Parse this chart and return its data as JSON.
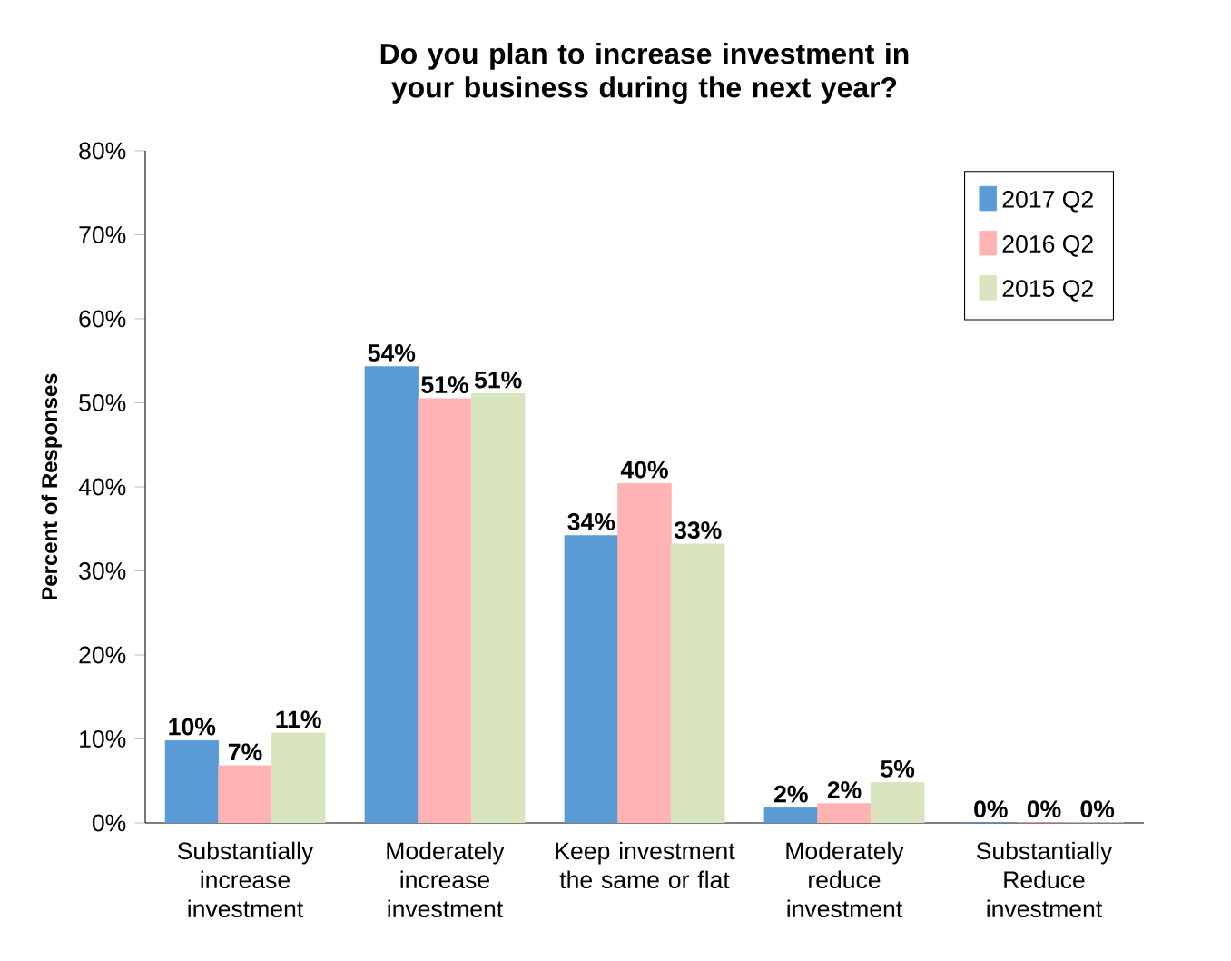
{
  "chart_data": {
    "type": "bar",
    "title": "Do you plan to increase investment in your business during the next year?",
    "ylabel": "Percent of Responses",
    "categories": [
      "Substantially increase investment",
      "Moderately increase investment",
      "Keep investment the same or flat",
      "Moderately reduce investment",
      "Substantially Reduce investment"
    ],
    "series": [
      {
        "name": "2017 Q2",
        "color": "#5b9bd5",
        "values": [
          9.8,
          54.3,
          34.2,
          1.8,
          0
        ],
        "value_labels": [
          "10%",
          "54%",
          "34%",
          "2%",
          "0%"
        ]
      },
      {
        "name": "2016 Q2",
        "color": "#ffb3b3",
        "values": [
          6.8,
          50.5,
          40.4,
          2.3,
          0
        ],
        "value_labels": [
          "7%",
          "51%",
          "40%",
          "2%",
          "0%"
        ]
      },
      {
        "name": "2015 Q2",
        "color": "#d7e4bd",
        "values": [
          10.7,
          51.1,
          33.2,
          4.8,
          0
        ],
        "value_labels": [
          "11%",
          "51%",
          "33%",
          "5%",
          "0%"
        ]
      }
    ],
    "ylim": [
      0,
      80
    ],
    "yticks": [
      {
        "value": 0,
        "label": "0%"
      },
      {
        "value": 10,
        "label": "10%"
      },
      {
        "value": 20,
        "label": "20%"
      },
      {
        "value": 30,
        "label": "30%"
      },
      {
        "value": 40,
        "label": "40%"
      },
      {
        "value": 50,
        "label": "50%"
      },
      {
        "value": 60,
        "label": "60%"
      },
      {
        "value": 70,
        "label": "70%"
      },
      {
        "value": 80,
        "label": "80%"
      }
    ],
    "legend": "top right"
  }
}
